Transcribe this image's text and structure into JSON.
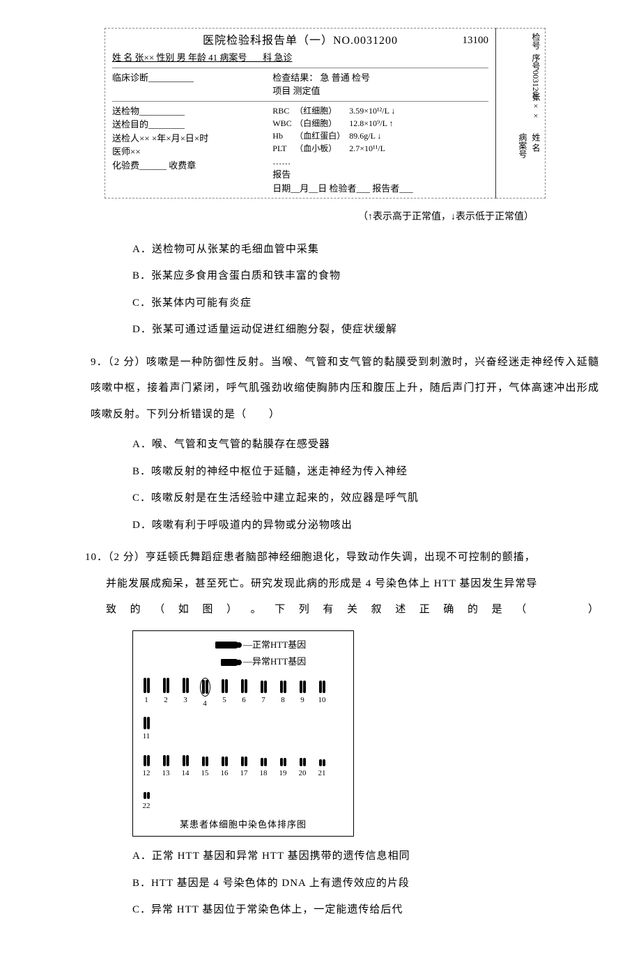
{
  "report": {
    "title": "医院检验科报告单（一）NO.0031200",
    "top_right_no": "13100",
    "line_name": "姓 名 张×× 性别 男 年龄 41 病案号___ 科 急诊",
    "diag_label": "临床诊断__________",
    "result_hd1": "检查结果：  急    普通  检号",
    "result_hd2": "项目            测定值",
    "left_rows": {
      "r1": "送检物__________",
      "r2": "送检目的________",
      "r3": "送检人×× ×年×月×日×时",
      "r4": "医师××",
      "r5": "化验费______  收费章"
    },
    "tests": [
      {
        "code": "RBC",
        "name": "（红细胞）",
        "val": "3.59×10¹²/L ↓"
      },
      {
        "code": "WBC",
        "name": "（白细胞）",
        "val": "12.8×10⁹/L ↑"
      },
      {
        "code": "Hb",
        "name": "（血红蛋白）",
        "val": "89.6g/L ↓"
      },
      {
        "code": "PLT",
        "name": "（血小板）",
        "val": "2.7×10¹¹/L"
      }
    ],
    "dots": "……",
    "footer1": "报告",
    "footer2": "日期__月__日   检验者___ 报告者___",
    "stub": {
      "seq": "序号0031200",
      "jh": "检号",
      "name_lbl": "姓 名",
      "name_val": "张××",
      "case_lbl": "病案号"
    }
  },
  "note": "（↑表示高于正常值，↓表示低于正常值）",
  "q8opts": {
    "A": "A．送检物可从张某的毛细血管中采集",
    "B": "B．张某应多食用含蛋白质和铁丰富的食物",
    "C": "C．张某体内可能有炎症",
    "D": "D．张某可通过适量运动促进红细胞分裂，使症状缓解"
  },
  "q9": {
    "stem": "9．（2 分）咳嗽是一种防御性反射。当喉、气管和支气管的黏膜受到刺激时，兴奋经迷走神经传入延髓咳嗽中枢，接着声门紧闭，呼气肌强劲收缩使胸肺内压和腹压上升，随后声门打开，气体高速冲出形成咳嗽反射。下列分析错误的是（　　）",
    "A": "A．喉、气管和支气管的黏膜存在感受器",
    "B": "B．咳嗽反射的神经中枢位于延髓，迷走神经为传入神经",
    "C": "C．咳嗽反射是在生活经验中建立起来的，效应器是呼气肌",
    "D": "D．咳嗽有利于呼吸道内的异物或分泌物咳出"
  },
  "q10": {
    "stem_a": "10．（2 分）亨廷顿氏舞蹈症患者脑部神经细胞退化，导致动作失调，出现不可控制的颤搐，",
    "stem_b": "并能发展成痴呆，甚至死亡。研究发现此病的形成是 4 号染色体上 HTT 基因发生异常导",
    "stem_c": "致 的 （ 如 图 ） 。 下 列 有 关 叙 述 正 确 的 是 （ 　 　 ）",
    "legend1": "正常HTT基因",
    "legend2": "异常HTT基因",
    "caption": "某患者体细胞中染色体排序图",
    "A": "A．正常 HTT 基因和异常 HTT 基因携带的遗传信息相同",
    "B": "B．HTT 基因是 4 号染色体的 DNA 上有遗传效应的片段",
    "C": "C．异常 HTT 基因位于常染色体上，一定能遗传给后代"
  },
  "chrom_numbers": [
    "1",
    "2",
    "3",
    "4",
    "5",
    "6",
    "7",
    "8",
    "9",
    "10",
    "11",
    "12",
    "13",
    "14",
    "15",
    "16",
    "17",
    "18",
    "19",
    "20",
    "21",
    "22"
  ]
}
